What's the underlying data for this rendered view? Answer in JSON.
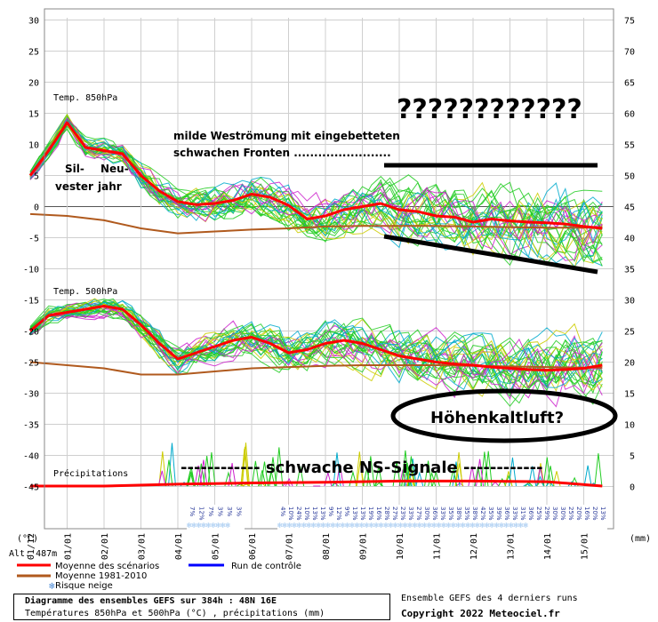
{
  "chart_data": {
    "type": "line",
    "y_left_ticks": [
      30,
      25,
      20,
      15,
      10,
      5,
      0,
      -5,
      -10,
      -15,
      -20,
      -25,
      -30,
      -35,
      -40,
      -45
    ],
    "y_right_ticks": [
      75,
      70,
      65,
      60,
      55,
      50,
      45,
      40,
      35,
      30,
      25,
      20,
      15,
      10,
      5,
      0
    ],
    "y_left_unit": "(°C)",
    "y_right_unit": "(mm)",
    "x_ticks": [
      "01/12",
      "01/01",
      "02/01",
      "03/01",
      "04/01",
      "05/01",
      "06/01",
      "07/01",
      "08/01",
      "09/01",
      "10/01",
      "11/01",
      "12/01",
      "13/01",
      "14/01",
      "15/01"
    ],
    "alt_label": "Alt. 487m",
    "panel_labels": {
      "t850": "Temp. 850hPa",
      "t500": "Temp. 500hPa",
      "precip": "Précipitations"
    },
    "t850_mean": {
      "x": [
        0,
        0.5,
        1,
        1.5,
        2,
        2.5,
        3,
        3.5,
        4,
        4.5,
        5,
        5.5,
        6,
        6.5,
        7,
        7.5,
        8,
        8.5,
        9,
        9.5,
        10,
        10.5,
        11,
        11.5,
        12,
        12.5,
        13,
        13.5,
        14,
        14.5,
        15,
        15.5
      ],
      "y": [
        5,
        9,
        13.5,
        9.5,
        9,
        8.5,
        5,
        2.5,
        0.8,
        0.3,
        0.5,
        1,
        2,
        1.5,
        0.2,
        -2,
        -1.5,
        -0.5,
        0,
        0.5,
        -0.5,
        -0.8,
        -1.5,
        -1.7,
        -2.5,
        -2,
        -2.3,
        -2.5,
        -2.6,
        -2.8,
        -3.2,
        -3.5
      ]
    },
    "t850_normal": {
      "x": [
        0,
        1,
        2,
        3,
        4,
        5,
        6,
        7,
        8,
        9,
        10,
        11,
        12,
        13,
        14,
        15,
        15.5
      ],
      "y": [
        -1.2,
        -1.5,
        -2.2,
        -3.5,
        -4.3,
        -4.0,
        -3.7,
        -3.5,
        -3.2,
        -3.1,
        -3.1,
        -3.1,
        -3.2,
        -3.3,
        -3.4,
        -3.4,
        -3.3
      ]
    },
    "t500_mean": {
      "x": [
        0,
        0.5,
        1,
        1.5,
        2,
        2.5,
        3,
        3.5,
        4,
        4.5,
        5,
        5.5,
        6,
        6.5,
        7,
        7.5,
        8,
        8.5,
        9,
        9.5,
        10,
        10.5,
        11,
        11.5,
        12,
        12.5,
        13,
        13.5,
        14,
        14.5,
        15,
        15.5
      ],
      "y": [
        -20,
        -17.5,
        -17,
        -16.5,
        -16,
        -16.5,
        -19,
        -22,
        -24.5,
        -23.5,
        -22.5,
        -21.5,
        -21,
        -22,
        -23.5,
        -23,
        -22,
        -21.5,
        -22,
        -23,
        -24,
        -24.5,
        -25,
        -25.3,
        -25.5,
        -25.8,
        -26,
        -26.2,
        -26.3,
        -26.2,
        -26,
        -25.5
      ]
    },
    "t500_normal": {
      "x": [
        0,
        1,
        2,
        3,
        4,
        5,
        6,
        7,
        8,
        9,
        10,
        11,
        12,
        13,
        14,
        15,
        15.5
      ],
      "y": [
        -25,
        -25.5,
        -26,
        -27,
        -27,
        -26.5,
        -26,
        -25.8,
        -25.6,
        -25.5,
        -25.5,
        -25.5,
        -25.6,
        -25.7,
        -25.8,
        -25.9,
        -25.9
      ]
    },
    "precip_mean": {
      "x": [
        0,
        2,
        4,
        6,
        8,
        10,
        12,
        14,
        15.5
      ],
      "y": [
        0,
        0,
        0.3,
        0.5,
        0.6,
        0.8,
        0.8,
        0.7,
        0
      ]
    },
    "snow_risk_labels": [
      "7%",
      "12%",
      "7%",
      "3%",
      "3%",
      "3%",
      "4%",
      "10%",
      "24%",
      "10%",
      "13%",
      "13%",
      "9%",
      "12%",
      "9%",
      "13%",
      "13%",
      "19%",
      "16%",
      "28%",
      "27%",
      "23%",
      "33%",
      "27%",
      "30%",
      "36%",
      "33%",
      "35%",
      "38%",
      "35%",
      "38%",
      "42%",
      "35%",
      "39%",
      "36%",
      "33%",
      "31%",
      "36%",
      "25%",
      "29%",
      "30%",
      "30%",
      "25%",
      "20%",
      "16%",
      "20%",
      "13%"
    ],
    "legend": {
      "mean": "Moyenne des scénarios",
      "control": "Run de contrôle",
      "normal": "Moyenne 1981-2010",
      "snow": "Risque neige"
    },
    "annotations": {
      "silvester_a": "Sil-",
      "silvester_b": "vester",
      "neujahr_a": "Neu-",
      "neujahr_b": "jahr",
      "weststroemung_a": "milde Weströmung mit eingebetteten",
      "weststroemung_b": "schwachen Fronten ........................",
      "question": "????????????",
      "hoehenkaltluft": "Höhenkaltluft?",
      "ns_signale": "------------ schwache NS-Signale ------------"
    },
    "colors": {
      "mean": "#ff0000",
      "normal": "#b05a1e",
      "control": "#0000ff",
      "ens_a": "#22cc22",
      "ens_b": "#cccc00",
      "ens_c": "#cc22cc",
      "ens_d": "#00aacc"
    },
    "footer": {
      "title": "Diagramme des ensembles GEFS sur 384h : 48N 16E",
      "subtitle": "Températures 850hPa et 500hPa (°C) , précipitations (mm)",
      "right1": "Ensemble GEFS des 4 derniers runs",
      "right2": "Copyright 2022 Meteociel.fr"
    }
  }
}
